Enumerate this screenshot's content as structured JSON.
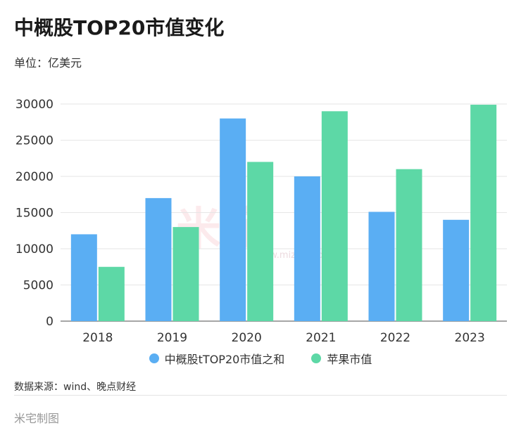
{
  "header": {
    "title": "中概股TOP20市值变化",
    "unit": "单位：亿美元"
  },
  "footer": {
    "source": "数据来源：wind、晚点财经",
    "credit": "米宅制图"
  },
  "watermark": {
    "logo_text": "米宅",
    "url": "www.mizhai.com"
  },
  "colors": {
    "series_a": "#5aaef3",
    "series_b": "#5dd8a6"
  },
  "chart_data": {
    "type": "bar",
    "categories": [
      "2018",
      "2019",
      "2020",
      "2021",
      "2022",
      "2023"
    ],
    "series": [
      {
        "name": "中概股tTOP20市值之和",
        "values": [
          12000,
          17000,
          28000,
          20000,
          15100,
          14000
        ]
      },
      {
        "name": "苹果市值",
        "values": [
          7500,
          13000,
          22000,
          29000,
          21000,
          29900
        ]
      }
    ],
    "ylim": [
      0,
      30000
    ],
    "yticks": [
      0,
      5000,
      10000,
      15000,
      20000,
      25000,
      30000
    ],
    "grid": true,
    "legend_position": "bottom-center"
  }
}
